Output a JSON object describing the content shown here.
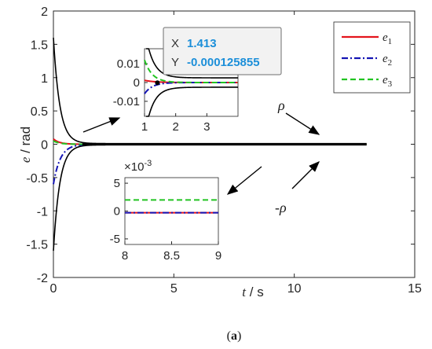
{
  "chart_data": [
    {
      "type": "line",
      "xlabel": {
        "var": "t",
        "unit": " / s"
      },
      "ylabel": {
        "var": "e",
        "unit": " / rad"
      },
      "xlim": [
        0,
        15
      ],
      "ylim": [
        -2,
        2
      ],
      "xticks": [
        "0",
        "5",
        "10",
        "15"
      ],
      "xtick_values": [
        0,
        5,
        10,
        15
      ],
      "yticks": [
        "-2",
        "-1.5",
        "-1",
        "-0.5",
        "0",
        "0.5",
        "1",
        "1.5",
        "2"
      ],
      "ytick_values": [
        -2,
        -1.5,
        -1,
        -0.5,
        0,
        0.5,
        1,
        1.5,
        2
      ],
      "grid": false,
      "legend_position": "top-right",
      "series": [
        {
          "name": "e1",
          "color": "#e3141c",
          "style": "solid",
          "initial": 0.08,
          "decay": 4.0
        },
        {
          "name": "e2",
          "color": "#1414b4",
          "style": "dash-dot",
          "initial": -0.6,
          "decay": 3.5
        },
        {
          "name": "e3",
          "color": "#22c422",
          "style": "dashed",
          "initial": 0.05,
          "decay": 4.0
        }
      ],
      "bounds": {
        "initial": 1.6,
        "final": 0.01,
        "decay": 3.8,
        "end_x": 13,
        "color": "#000000"
      },
      "annotations": {
        "rho": "ρ",
        "neg_rho": "-ρ"
      },
      "caption": "(a)"
    },
    {
      "type": "line",
      "inset": "upper",
      "xlim": [
        1,
        4
      ],
      "ylim": [
        -0.018,
        0.018
      ],
      "xticks": [
        "1",
        "2",
        "3"
      ],
      "xtick_values": [
        1,
        2,
        3
      ],
      "yticks": [
        "0.01",
        "0",
        "-0.01"
      ],
      "ytick_values": [
        0.01,
        0,
        -0.01
      ],
      "datatip": {
        "x_label": "X",
        "x_value": "1.413",
        "y_label": "Y",
        "y_value": "-0.000125855"
      }
    },
    {
      "type": "line",
      "inset": "lower",
      "xlim": [
        8,
        9
      ],
      "ylim": [
        -6,
        6
      ],
      "xticks": [
        "8",
        "8.5",
        "9"
      ],
      "xtick_values": [
        8,
        8.5,
        9
      ],
      "yticks": [
        "5",
        "0",
        "-5"
      ],
      "ytick_values": [
        5,
        0,
        -5
      ],
      "exponent": "×10",
      "exponent_power": "-3",
      "series_values": {
        "e1": -0.3,
        "e2": -0.3,
        "e3": 2
      }
    }
  ]
}
